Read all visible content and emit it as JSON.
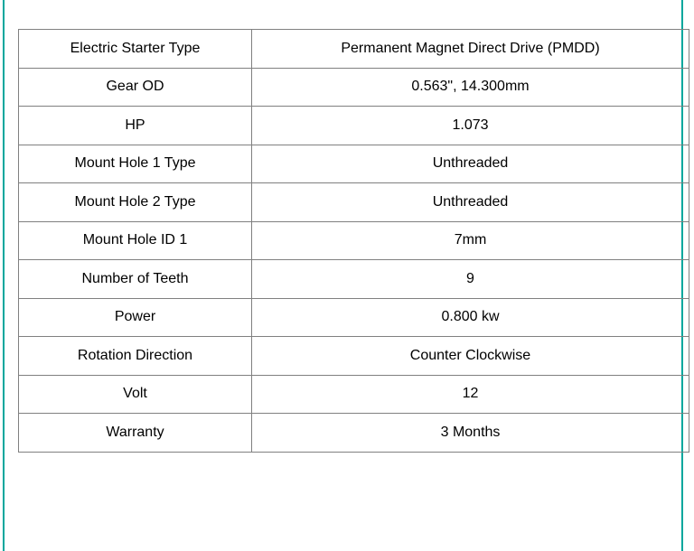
{
  "page": {
    "background_color": "#ffffff",
    "edge_border_color": "#00A79D"
  },
  "spec_table": {
    "border_color": "#808080",
    "text_color": "#000000",
    "rows": [
      {
        "label": "Electric Starter Type",
        "value": "Permanent Magnet Direct Drive (PMDD)"
      },
      {
        "label": "Gear OD",
        "value": "0.563\", 14.300mm"
      },
      {
        "label": "HP",
        "value": "1.073"
      },
      {
        "label": "Mount Hole 1 Type",
        "value": "Unthreaded"
      },
      {
        "label": "Mount Hole 2 Type",
        "value": "Unthreaded"
      },
      {
        "label": "Mount Hole ID 1",
        "value": "7mm"
      },
      {
        "label": "Number of Teeth",
        "value": "9"
      },
      {
        "label": "Power",
        "value": "0.800 kw"
      },
      {
        "label": "Rotation Direction",
        "value": "Counter Clockwise"
      },
      {
        "label": "Volt",
        "value": "12"
      },
      {
        "label": "Warranty",
        "value": "3 Months"
      }
    ]
  }
}
